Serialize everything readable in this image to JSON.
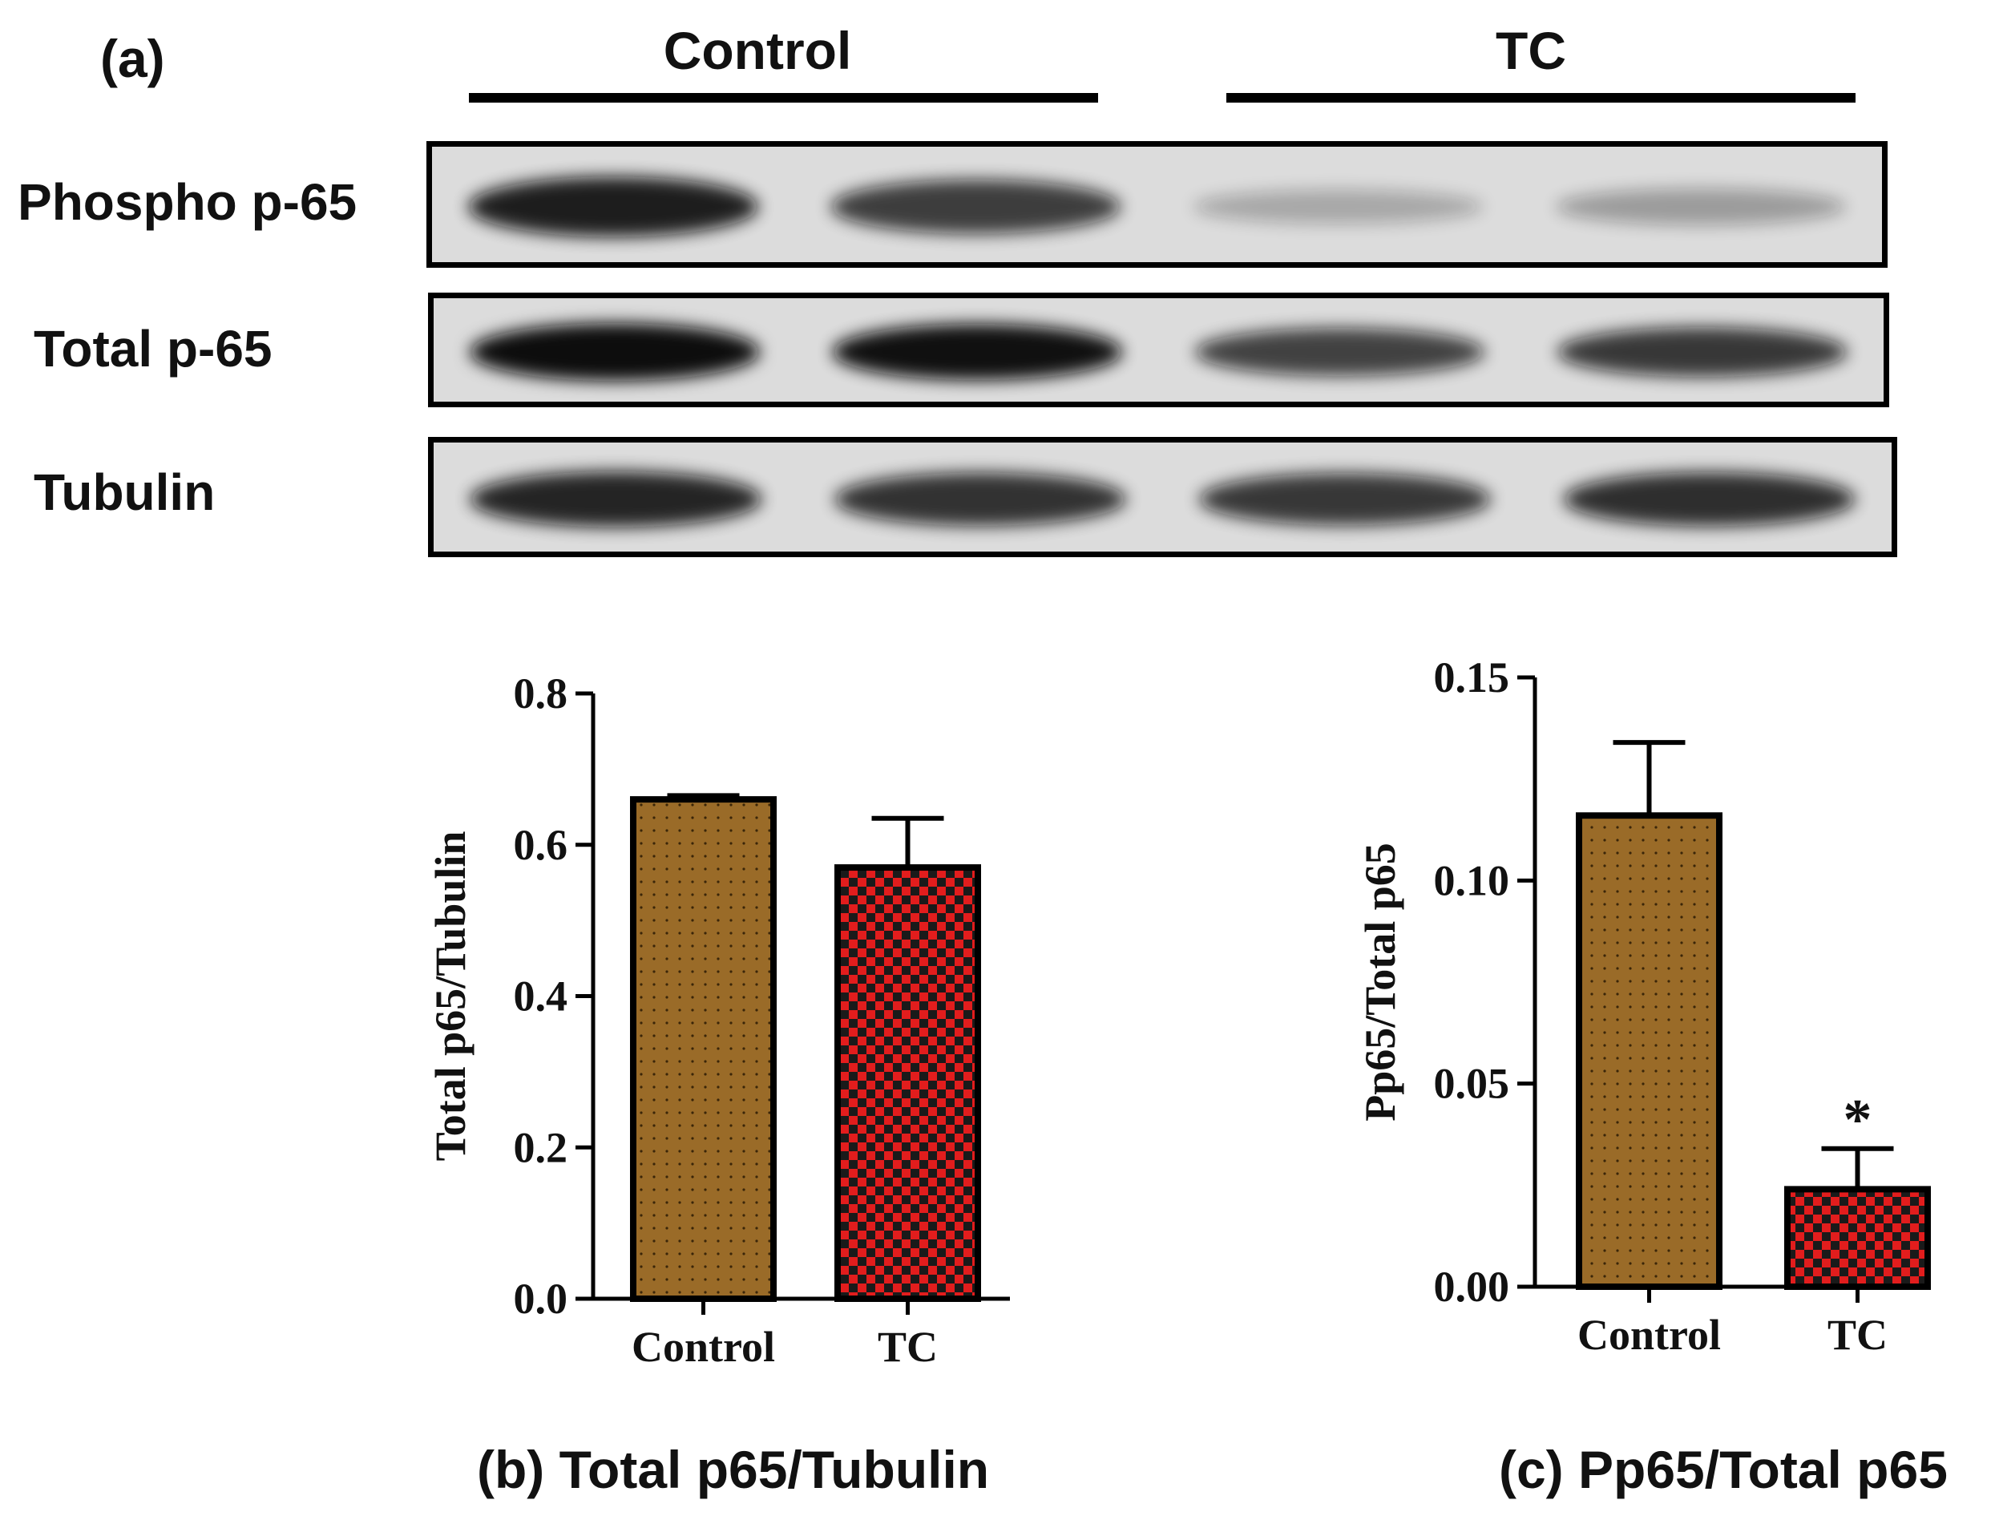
{
  "panel_a": {
    "label": "(a)",
    "groups": [
      "Control",
      "TC"
    ],
    "rows": [
      {
        "label": "Phospho p-65",
        "intensities": [
          0.88,
          0.72,
          0.18,
          0.24
        ]
      },
      {
        "label": "Total p-65",
        "intensities": [
          1.0,
          0.95,
          0.7,
          0.75
        ]
      },
      {
        "label": "Tubulin",
        "intensities": [
          0.85,
          0.78,
          0.75,
          0.8
        ]
      }
    ]
  },
  "colors": {
    "control_fill": "#9a6b28",
    "tc_fill": "#e21d1d",
    "tc_check": "#1a1a1a",
    "blot_bg": "#dcdcdc",
    "band": "#0d0d0d"
  },
  "captions": {
    "b": "(b) Total p65/Tubulin",
    "c": "(c) Pp65/Total p65"
  },
  "chart_data": [
    {
      "type": "bar",
      "categories": [
        "Control",
        "TC"
      ],
      "values": [
        0.66,
        0.57
      ],
      "errors": [
        0.005,
        0.065
      ],
      "ylabel": "Total p65/Tubulin",
      "ylim": [
        0,
        0.8
      ],
      "yticks": [
        "0.0",
        "0.2",
        "0.4",
        "0.6",
        "0.8"
      ],
      "ytick_values": [
        0,
        0.2,
        0.4,
        0.6,
        0.8
      ],
      "annotations": [
        "",
        ""
      ]
    },
    {
      "type": "bar",
      "categories": [
        "Control",
        "TC"
      ],
      "values": [
        0.116,
        0.024
      ],
      "errors": [
        0.018,
        0.01
      ],
      "ylabel": "Pp65/Total p65",
      "ylim": [
        0,
        0.15
      ],
      "yticks": [
        "0.00",
        "0.05",
        "0.10",
        "0.15"
      ],
      "ytick_values": [
        0,
        0.05,
        0.1,
        0.15
      ],
      "annotations": [
        "",
        "*"
      ]
    }
  ]
}
